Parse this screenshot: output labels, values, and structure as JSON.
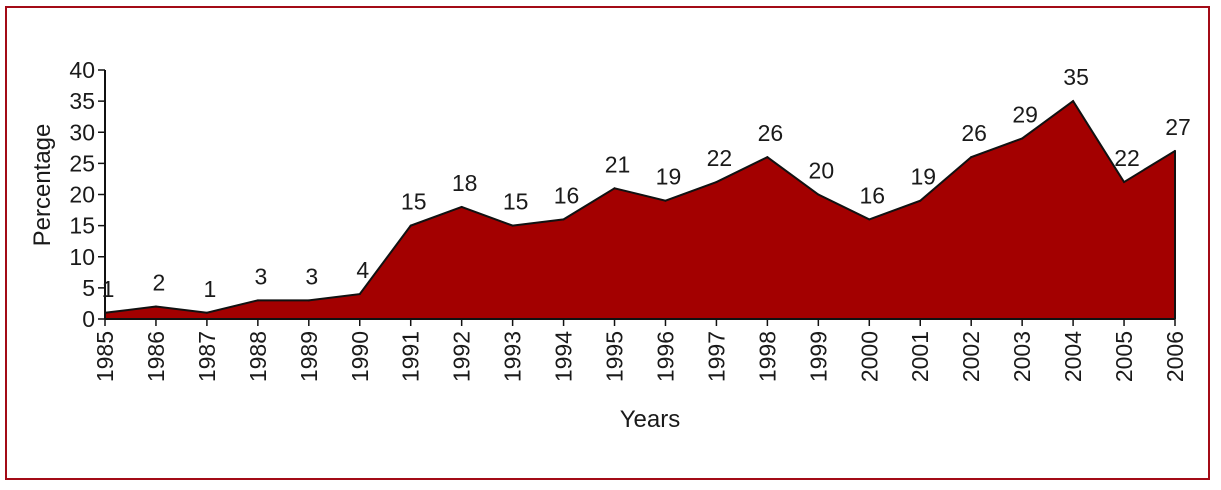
{
  "chart_data": {
    "type": "area",
    "title": "",
    "xlabel": "Years",
    "ylabel": "Percentage",
    "ylim": [
      0,
      40
    ],
    "yticks": [
      0,
      5,
      10,
      15,
      20,
      25,
      30,
      35,
      40
    ],
    "grid": false,
    "legend": "none",
    "categories": [
      "1985",
      "1986",
      "1987",
      "1988",
      "1989",
      "1990",
      "1991",
      "1992",
      "1993",
      "1994",
      "1995",
      "1996",
      "1997",
      "1998",
      "1999",
      "2000",
      "2001",
      "2002",
      "2003",
      "2004",
      "2005",
      "2006"
    ],
    "values": [
      1,
      2,
      1,
      3,
      3,
      4,
      15,
      18,
      15,
      16,
      21,
      19,
      22,
      26,
      20,
      16,
      19,
      26,
      29,
      35,
      22,
      27
    ],
    "data_labels": [
      "1",
      "2",
      "1",
      "3",
      "3",
      "4",
      "15",
      "18",
      "15",
      "16",
      "21",
      "19",
      "22",
      "26",
      "20",
      "16",
      "19",
      "26",
      "29",
      "35",
      "22",
      "27"
    ],
    "colors": {
      "fill": "#a30000",
      "line": "#111111",
      "frame": "#a30b17"
    }
  }
}
